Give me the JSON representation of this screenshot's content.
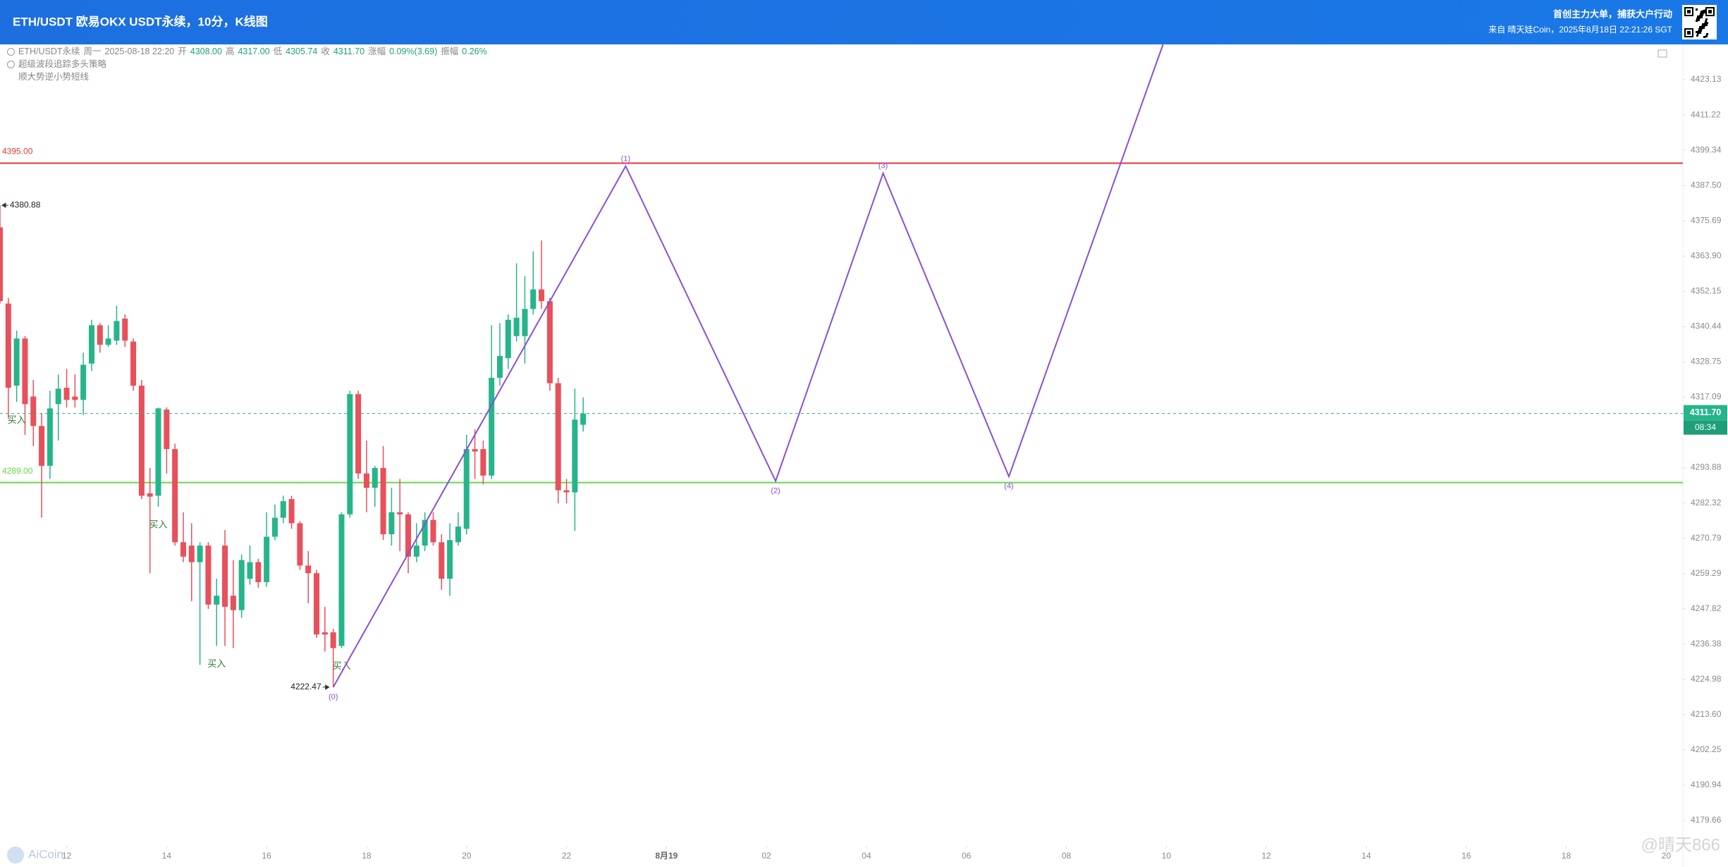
{
  "header": {
    "title": "ETH/USDT 欧易OKX USDT永续，10分，K线图",
    "slogan": "首创主力大单，捕获大户行动",
    "source": "来自 晴天娃Coin，2025年8月18日 22:21:26 SGT"
  },
  "watermarks": [
    "AiCoin",
    "@晴天866"
  ],
  "chart_data": {
    "type": "candlestick",
    "log_scale": true,
    "grid": false,
    "up_color": "#26b58a",
    "down_color": "#e8505b",
    "readout": {
      "symbol": "ETH/USDT永续",
      "weekday": "周一",
      "time": "2025-08-18 22:20",
      "fields": [
        {
          "name": "开",
          "value": "4308.00"
        },
        {
          "name": "高",
          "value": "4317.00"
        },
        {
          "name": "低",
          "value": "4305.74"
        },
        {
          "name": "收",
          "value": "4311.70"
        },
        {
          "name": "涨幅",
          "value": "0.09%(3.69)"
        },
        {
          "name": "振幅",
          "value": "0.26%"
        }
      ]
    },
    "indicators": [
      "超级波段追踪多头策略",
      "顺大势逆小势短线"
    ],
    "categories": [
      null,
      null,
      null,
      null,
      null,
      null,
      null,
      null,
      null,
      null,
      null,
      null,
      null,
      null,
      null,
      null,
      null,
      null,
      null,
      null,
      null,
      null,
      null,
      null,
      null,
      null,
      null,
      null,
      null,
      null,
      null,
      null,
      null,
      null,
      null,
      null,
      null,
      null,
      null,
      null,
      null,
      null,
      null,
      null,
      null,
      null,
      null,
      null,
      null,
      null,
      null,
      null,
      null,
      null,
      null,
      null,
      null,
      null,
      null,
      null,
      null,
      null,
      null,
      null,
      null,
      null,
      null,
      null,
      null,
      null,
      null
    ],
    "open": [
      4373.5,
      4348.1,
      4320.9,
      4336.5,
      4317.3,
      4307.6,
      4294.5,
      4314.8,
      4320.2,
      4317.3,
      4316.2,
      4328.2,
      4340.9,
      4334.4,
      4335.8,
      4343.1,
      4335.5,
      4320.9,
      4285.5,
      4284.7,
      4313.0,
      4300.0,
      4269.5,
      4268.4,
      4263.0,
      4268.4,
      4249.2,
      4268.4,
      4252.1,
      4247.4,
      4257.6,
      4263.0,
      4256.5,
      4271.3,
      4277.5,
      4283.6,
      4275.7,
      4261.9,
      4259.4,
      4240.2,
      4240.2,
      4235.8,
      4278.6,
      4318.1,
      4292.0,
      4287.3,
      4293.8,
      4272.1,
      4279.3,
      4278.6,
      4264.8,
      4268.4,
      4276.8,
      4269.5,
      4257.6,
      4269.5,
      4273.9,
      4300.0,
      4300.0,
      4291.3,
      4323.5,
      4330.0,
      4337.3,
      4337.3,
      4346.3,
      4352.8,
      4348.9,
      4321.7,
      4286.5,
      4285.8,
      4308.0
    ],
    "high": [
      4380.88,
      4350.0,
      4339.1,
      4337.3,
      4322.8,
      4311.9,
      4319.2,
      4324.6,
      4326.4,
      4324.6,
      4331.8,
      4342.7,
      4341.6,
      4340.9,
      4347.4,
      4344.5,
      4336.5,
      4322.8,
      4293.8,
      4313.7,
      4313.7,
      4301.8,
      4279.3,
      4275.7,
      4269.5,
      4269.5,
      4257.6,
      4273.5,
      4263.7,
      4265.5,
      4268.4,
      4264.1,
      4279.3,
      4281.8,
      4284.7,
      4284.7,
      4276.4,
      4266.6,
      4260.5,
      4248.5,
      4241.3,
      4279.3,
      4319.2,
      4319.2,
      4302.8,
      4294.5,
      4301.0,
      4287.3,
      4290.2,
      4279.3,
      4275.7,
      4279.3,
      4279.3,
      4272.1,
      4275.7,
      4279.3,
      4304.7,
      4306.5,
      4302.8,
      4340.9,
      4341.6,
      4344.5,
      4361.5,
      4357.2,
      4365.5,
      4369.1,
      4350.0,
      4323.5,
      4290.2,
      4319.9,
      4317.0
    ],
    "low": [
      4348.1,
      4310.1,
      4315.5,
      4304.7,
      4301.0,
      4277.5,
      4290.2,
      4302.8,
      4313.7,
      4313.7,
      4311.2,
      4325.7,
      4331.8,
      4333.7,
      4334.4,
      4333.7,
      4319.2,
      4283.6,
      4259.4,
      4281.1,
      4292.0,
      4268.4,
      4263.0,
      4250.3,
      4229.7,
      4247.8,
      4235.8,
      4235.8,
      4235.1,
      4244.9,
      4255.7,
      4254.7,
      4255.0,
      4270.2,
      4275.7,
      4273.9,
      4260.5,
      4249.6,
      4238.4,
      4234.0,
      4222.47,
      4235.1,
      4277.5,
      4290.2,
      4279.3,
      4281.1,
      4270.2,
      4268.4,
      4266.6,
      4259.4,
      4263.0,
      4266.6,
      4268.4,
      4254.0,
      4252.1,
      4268.4,
      4272.1,
      4290.2,
      4288.4,
      4290.2,
      4320.9,
      4326.4,
      4335.5,
      4328.2,
      4344.5,
      4346.3,
      4319.2,
      4282.2,
      4282.2,
      4273.2,
      4305.74
    ],
    "close": [
      4348.9,
      4320.2,
      4336.5,
      4314.8,
      4307.6,
      4294.5,
      4313.4,
      4319.9,
      4316.2,
      4316.2,
      4327.8,
      4340.9,
      4334.4,
      4336.5,
      4342.3,
      4335.8,
      4320.9,
      4284.7,
      4284.4,
      4313.4,
      4300.0,
      4269.5,
      4264.8,
      4263.0,
      4268.4,
      4249.2,
      4252.1,
      4248.5,
      4247.4,
      4263.7,
      4263.0,
      4256.5,
      4271.3,
      4277.5,
      4282.9,
      4275.7,
      4261.9,
      4259.4,
      4239.5,
      4239.5,
      4235.1,
      4278.6,
      4318.1,
      4292.0,
      4287.3,
      4293.8,
      4272.1,
      4279.3,
      4278.6,
      4264.8,
      4268.4,
      4276.8,
      4269.5,
      4257.6,
      4270.2,
      4274.6,
      4300.0,
      4299.2,
      4291.3,
      4323.5,
      4330.7,
      4342.7,
      4343.4,
      4346.3,
      4352.8,
      4348.9,
      4321.7,
      4286.5,
      4285.8,
      4309.7,
      4311.7
    ],
    "last_price_label": "4311.70",
    "countdown": "08:34",
    "xlim": [
      0,
      202
    ],
    "xticks": [
      {
        "value": 8,
        "label": "12"
      },
      {
        "value": 20,
        "label": "14"
      },
      {
        "value": 32,
        "label": "16"
      },
      {
        "value": 44,
        "label": "18"
      },
      {
        "value": 56,
        "label": "20"
      },
      {
        "value": 68,
        "label": "22"
      },
      {
        "value": 80,
        "label": "8月19"
      },
      {
        "value": 92,
        "label": "02"
      },
      {
        "value": 104,
        "label": "04"
      },
      {
        "value": 116,
        "label": "06"
      },
      {
        "value": 128,
        "label": "08"
      },
      {
        "value": 140,
        "label": "10"
      },
      {
        "value": 152,
        "label": "12"
      },
      {
        "value": 164,
        "label": "14"
      },
      {
        "value": 176,
        "label": "16"
      },
      {
        "value": 188,
        "label": "18"
      },
      {
        "value": 200,
        "label": "20"
      }
    ],
    "ylim": [
      4171.57,
      4435.07
    ],
    "yticks": [
      4423.13,
      4411.22,
      4399.34,
      {
        "value": 4387.5,
        "label": "4387.50"
      },
      4375.69,
      {
        "value": 4363.9,
        "label": "4363.90"
      },
      4352.15,
      4340.44,
      4328.75,
      4317.09,
      4293.88,
      4282.32,
      4270.79,
      4259.29,
      4247.82,
      4236.38,
      4224.98,
      {
        "value": 4213.6,
        "label": "4213.60"
      },
      4202.25,
      4190.94,
      4179.66
    ],
    "levels": [
      {
        "value": 4395,
        "label": "4395.00",
        "color": "#e53935"
      },
      {
        "value": 4289,
        "label": "4289.00",
        "color": "#66d94a"
      }
    ],
    "signals": [
      {
        "index": 2,
        "label": "买入"
      },
      {
        "index": 19,
        "label": "买入"
      },
      {
        "index": 26,
        "label": "买入"
      },
      {
        "index": 41,
        "label": "买入"
      }
    ],
    "projection": {
      "color": "#8a4fd8",
      "points": [
        {
          "x": 40,
          "y": 4222.47,
          "label": "(0)"
        },
        {
          "x": 75.1,
          "y": 4394,
          "label": "(1)"
        },
        {
          "x": 93.1,
          "y": 4289.5,
          "label": "(2)"
        },
        {
          "x": 106,
          "y": 4391.6,
          "label": "(3)"
        },
        {
          "x": 121.1,
          "y": 4291,
          "label": "(4)"
        },
        {
          "x": 139.6,
          "y": 4435.07
        }
      ]
    }
  }
}
